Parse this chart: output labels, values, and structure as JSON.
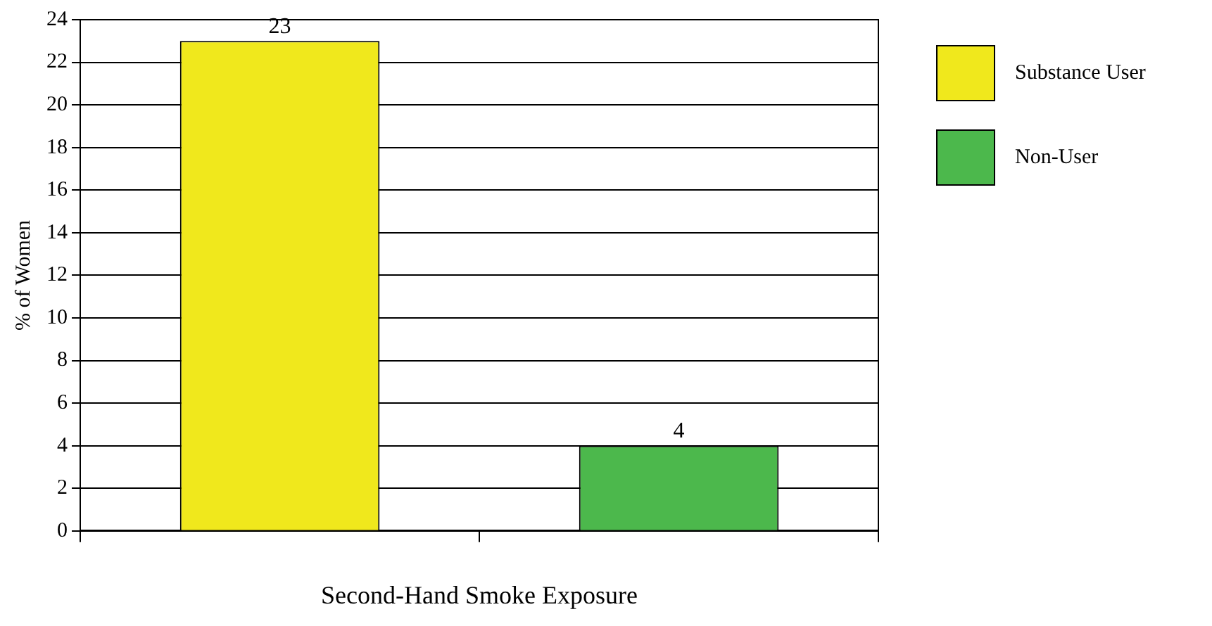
{
  "chart_data": {
    "type": "bar",
    "xlabel": "Second-Hand Smoke Exposure",
    "ylabel": "% of Women",
    "categories": [
      null,
      null
    ],
    "series": [
      {
        "name": "Substance User",
        "color": "#f0e81c",
        "values": [
          23,
          null
        ]
      },
      {
        "name": "Non-User",
        "color": "#4cb84c",
        "values": [
          null,
          4
        ]
      }
    ],
    "ylim": [
      0,
      24
    ],
    "yticks": [
      0,
      2,
      4,
      6,
      8,
      10,
      12,
      14,
      16,
      18,
      20,
      22,
      24
    ],
    "grid": "y",
    "legend": "top right",
    "data_labels": true
  }
}
